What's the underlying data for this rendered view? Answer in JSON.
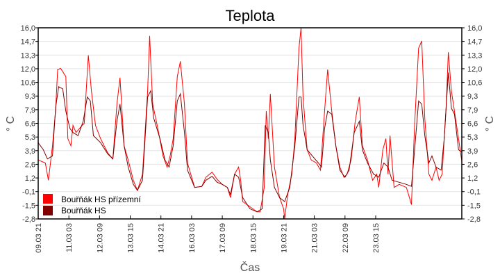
{
  "chart_data": {
    "type": "line",
    "title": "Teplota",
    "xlabel": "Čas",
    "ylabel": "° C",
    "x_unit": "hours since 09.03 21",
    "xlim": [
      0,
      414
    ],
    "ylim": [
      -2.8,
      16.0
    ],
    "yticks": [
      "16,0",
      "14,7",
      "13,3",
      "12,0",
      "10,6",
      "9,3",
      "7,9",
      "6,6",
      "5,3",
      "3,9",
      "2,6",
      "1,2",
      "-0,1",
      "-1,5",
      "-2,8"
    ],
    "xticks": [
      {
        "x": 0,
        "label": "09.03 21"
      },
      {
        "x": 30,
        "label": "11.03 03"
      },
      {
        "x": 60,
        "label": "12.03 09"
      },
      {
        "x": 90,
        "label": "13.03 15"
      },
      {
        "x": 120,
        "label": "14.03 21"
      },
      {
        "x": 150,
        "label": "16.03 03"
      },
      {
        "x": 180,
        "label": "17.03 09"
      },
      {
        "x": 210,
        "label": "18.03 15"
      },
      {
        "x": 240,
        "label": "19.03 21"
      },
      {
        "x": 270,
        "label": "21.03 03"
      },
      {
        "x": 300,
        "label": "22.03 09"
      },
      {
        "x": 330,
        "label": "23.03 15"
      }
    ],
    "grid": "horizontal",
    "legend_position": "bottom-left",
    "series": [
      {
        "name": "Bouřňák HS přízemní",
        "color": "#ff0000",
        "points": [
          [
            0,
            3.0
          ],
          [
            7,
            2.7
          ],
          [
            10,
            1.0
          ],
          [
            14,
            4.4
          ],
          [
            17,
            7.8
          ],
          [
            19,
            11.9
          ],
          [
            22,
            12.0
          ],
          [
            27,
            11.2
          ],
          [
            29,
            5.1
          ],
          [
            32,
            4.4
          ],
          [
            34,
            6.4
          ],
          [
            37,
            5.7
          ],
          [
            43,
            6.4
          ],
          [
            45,
            6.6
          ],
          [
            49,
            13.3
          ],
          [
            52,
            9.8
          ],
          [
            56,
            6.4
          ],
          [
            61,
            5.1
          ],
          [
            68,
            3.7
          ],
          [
            73,
            3.1
          ],
          [
            77,
            8.5
          ],
          [
            80,
            11.1
          ],
          [
            84,
            4.4
          ],
          [
            88,
            3.0
          ],
          [
            93,
            1.0
          ],
          [
            97,
            0
          ],
          [
            102,
            1.6
          ],
          [
            107,
            9.8
          ],
          [
            109,
            15.2
          ],
          [
            112,
            8.5
          ],
          [
            117,
            6.1
          ],
          [
            122,
            3.4
          ],
          [
            126,
            2.3
          ],
          [
            129,
            3.4
          ],
          [
            132,
            5.1
          ],
          [
            136,
            11.2
          ],
          [
            139,
            12.7
          ],
          [
            143,
            8.5
          ],
          [
            146,
            2.7
          ],
          [
            153,
            0.3
          ],
          [
            160,
            0.4
          ],
          [
            164,
            1.3
          ],
          [
            170,
            1.8
          ],
          [
            175,
            1.1
          ],
          [
            180,
            0.6
          ],
          [
            185,
            0.3
          ],
          [
            188,
            -0.7
          ],
          [
            192,
            1.6
          ],
          [
            196,
            2.3
          ],
          [
            198,
            1.0
          ],
          [
            200,
            -1.1
          ],
          [
            207,
            -1.6
          ],
          [
            214,
            -2.1
          ],
          [
            217,
            -2.1
          ],
          [
            221,
            0.3
          ],
          [
            223,
            7.8
          ],
          [
            225,
            5.1
          ],
          [
            227,
            9.5
          ],
          [
            231,
            2.3
          ],
          [
            236,
            -0.7
          ],
          [
            240,
            -1.8
          ],
          [
            241,
            -2.8
          ],
          [
            244,
            -0.4
          ],
          [
            248,
            1.6
          ],
          [
            251,
            5.1
          ],
          [
            255,
            14.0
          ],
          [
            257,
            16.0
          ],
          [
            259,
            9.2
          ],
          [
            263,
            4.0
          ],
          [
            267,
            3.0
          ],
          [
            272,
            2.7
          ],
          [
            276,
            2.0
          ],
          [
            280,
            7.8
          ],
          [
            283,
            11.9
          ],
          [
            287,
            7.8
          ],
          [
            291,
            4.4
          ],
          [
            295,
            2.3
          ],
          [
            299,
            1.3
          ],
          [
            302,
            1.6
          ],
          [
            306,
            3.0
          ],
          [
            310,
            6.8
          ],
          [
            314,
            9.2
          ],
          [
            317,
            4.4
          ],
          [
            322,
            3.0
          ],
          [
            327,
            1.0
          ],
          [
            331,
            1.6
          ],
          [
            333,
            0.3
          ],
          [
            337,
            4.0
          ],
          [
            340,
            5.1
          ],
          [
            342,
            1.6
          ],
          [
            344,
            5.4
          ],
          [
            348,
            0.3
          ],
          [
            353,
            0.6
          ],
          [
            360,
            0.3
          ],
          [
            363,
            -0.7
          ],
          [
            365,
            -1.4
          ],
          [
            368,
            6.4
          ],
          [
            372,
            14.0
          ],
          [
            375,
            14.7
          ],
          [
            378,
            7.1
          ],
          [
            382,
            1.6
          ],
          [
            385,
            1.0
          ],
          [
            389,
            2.3
          ],
          [
            392,
            1.0
          ],
          [
            395,
            1.6
          ],
          [
            399,
            8.5
          ],
          [
            401,
            13.6
          ],
          [
            404,
            9.8
          ],
          [
            407,
            7.8
          ],
          [
            411,
            5.1
          ],
          [
            414,
            3.0
          ]
        ]
      },
      {
        "name": "Bouřňák HS",
        "color": "#800000",
        "points": [
          [
            0,
            4.7
          ],
          [
            5,
            4.0
          ],
          [
            9,
            3.1
          ],
          [
            14,
            3.4
          ],
          [
            17,
            8.1
          ],
          [
            20,
            10.2
          ],
          [
            24,
            10.0
          ],
          [
            27,
            7.8
          ],
          [
            31,
            6.1
          ],
          [
            34,
            5.7
          ],
          [
            39,
            5.4
          ],
          [
            44,
            6.8
          ],
          [
            48,
            9.2
          ],
          [
            51,
            8.8
          ],
          [
            54,
            5.4
          ],
          [
            61,
            4.7
          ],
          [
            68,
            3.6
          ],
          [
            73,
            3.1
          ],
          [
            77,
            6.8
          ],
          [
            80,
            8.5
          ],
          [
            84,
            4.4
          ],
          [
            88,
            2.3
          ],
          [
            93,
            0.6
          ],
          [
            97,
            0
          ],
          [
            102,
            1.0
          ],
          [
            107,
            9.2
          ],
          [
            110,
            9.8
          ],
          [
            113,
            7.1
          ],
          [
            119,
            5.1
          ],
          [
            124,
            3.0
          ],
          [
            128,
            2.3
          ],
          [
            132,
            4.4
          ],
          [
            136,
            8.8
          ],
          [
            139,
            9.5
          ],
          [
            143,
            5.7
          ],
          [
            146,
            2.0
          ],
          [
            153,
            0.3
          ],
          [
            160,
            0.4
          ],
          [
            164,
            1.0
          ],
          [
            170,
            1.4
          ],
          [
            175,
            0.8
          ],
          [
            180,
            0.6
          ],
          [
            185,
            0.3
          ],
          [
            188,
            -0.4
          ],
          [
            192,
            1.6
          ],
          [
            196,
            1.3
          ],
          [
            200,
            -0.7
          ],
          [
            207,
            -1.8
          ],
          [
            214,
            -2.1
          ],
          [
            219,
            -1.8
          ],
          [
            222,
            6.4
          ],
          [
            225,
            5.7
          ],
          [
            227,
            3.0
          ],
          [
            231,
            0.3
          ],
          [
            236,
            -0.7
          ],
          [
            241,
            -1.1
          ],
          [
            246,
            0.3
          ],
          [
            251,
            4.4
          ],
          [
            255,
            9.2
          ],
          [
            257,
            9.2
          ],
          [
            259,
            6.4
          ],
          [
            263,
            4.0
          ],
          [
            268,
            3.4
          ],
          [
            274,
            2.7
          ],
          [
            277,
            2.3
          ],
          [
            280,
            6.1
          ],
          [
            283,
            7.8
          ],
          [
            287,
            7.5
          ],
          [
            291,
            4.4
          ],
          [
            295,
            2.0
          ],
          [
            300,
            1.3
          ],
          [
            304,
            2.0
          ],
          [
            309,
            5.7
          ],
          [
            314,
            6.8
          ],
          [
            317,
            4.0
          ],
          [
            322,
            2.7
          ],
          [
            328,
            1.6
          ],
          [
            333,
            1.3
          ],
          [
            338,
            2.7
          ],
          [
            342,
            2.3
          ],
          [
            346,
            1.0
          ],
          [
            353,
            0.8
          ],
          [
            360,
            0.6
          ],
          [
            365,
            0.4
          ],
          [
            369,
            5.1
          ],
          [
            372,
            8.8
          ],
          [
            375,
            8.5
          ],
          [
            378,
            5.4
          ],
          [
            382,
            2.7
          ],
          [
            385,
            3.4
          ],
          [
            389,
            2.3
          ],
          [
            394,
            2.0
          ],
          [
            397,
            5.1
          ],
          [
            401,
            11.6
          ],
          [
            404,
            8.1
          ],
          [
            407,
            7.5
          ],
          [
            411,
            4.0
          ],
          [
            414,
            3.8
          ]
        ]
      }
    ]
  }
}
